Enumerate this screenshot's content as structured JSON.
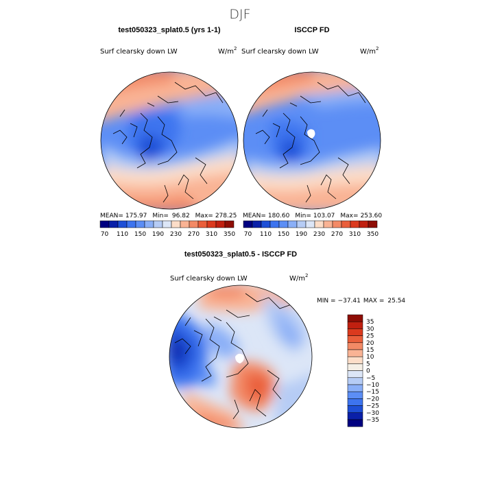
{
  "page_title": "DJF",
  "colors": {
    "blues": [
      "#000080",
      "#0a20a8",
      "#1e4fd6",
      "#3d74ef",
      "#5c8ef5",
      "#8aaff7",
      "#b6ccf5",
      "#dce6f7"
    ],
    "reds": [
      "#fcddc8",
      "#f9b394",
      "#f38a66",
      "#ea5f3b",
      "#db3a1e",
      "#c02010",
      "#8e0d05"
    ],
    "neutral": "#f5efe6",
    "land_line": "#000000"
  },
  "chart_data": [
    {
      "type": "heatmap",
      "projection": "north-polar-stereographic",
      "title": "test050323_splat0.5 (yrs 1-1)",
      "variable_label": "Surf clearsky down LW",
      "units": "W/m",
      "units_exp": "2",
      "stats": {
        "mean_label": "MEAN=",
        "mean": "175.97",
        "min_label": "Min=",
        "min": "96.82",
        "max_label": "Max=",
        "max": "278.25"
      },
      "colorbar": {
        "orientation": "horizontal",
        "ticks": [
          "70",
          "110",
          "150",
          "190",
          "230",
          "270",
          "310",
          "350"
        ]
      }
    },
    {
      "type": "heatmap",
      "projection": "north-polar-stereographic",
      "title": "ISCCP FD",
      "variable_label": "Surf clearsky down LW",
      "units": "W/m",
      "units_exp": "2",
      "stats": {
        "mean_label": "MEAN=",
        "mean": "180.60",
        "min_label": "Min=",
        "min": "103.07",
        "max_label": "Max=",
        "max": "253.60"
      },
      "colorbar": {
        "orientation": "horizontal",
        "ticks": [
          "70",
          "110",
          "150",
          "190",
          "230",
          "270",
          "310",
          "350"
        ]
      }
    },
    {
      "type": "heatmap",
      "projection": "north-polar-stereographic",
      "title": "test050323_splat0.5 - ISCCP FD",
      "variable_label": "Surf clearsky down LW",
      "units": "W/m",
      "units_exp": "2",
      "stats": {
        "min_label": "MIN =",
        "min": "−37.41",
        "max_label": "MAX =",
        "max": "25.54"
      },
      "colorbar": {
        "orientation": "vertical",
        "ticks": [
          "35",
          "30",
          "25",
          "20",
          "15",
          "10",
          "5",
          "0",
          "−5",
          "−10",
          "−15",
          "−20",
          "−25",
          "−30",
          "−35"
        ]
      }
    }
  ]
}
